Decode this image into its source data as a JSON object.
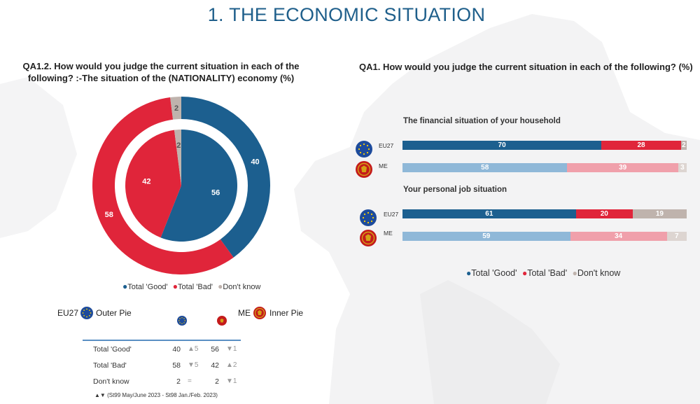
{
  "page_title": "1. THE ECONOMIC SITUATION",
  "colors": {
    "good": "#1c5f8f",
    "bad": "#e0253a",
    "dk": "#bfb3ad",
    "good_light": "#8fb8d8",
    "bad_light": "#f0a0ab",
    "dk_light": "#ddd5d1"
  },
  "left": {
    "question": "QA1.2. How would you judge the current situation in each of the following? :-The situation of the (NATIONALITY) economy (%)",
    "legend": [
      "Total 'Good'",
      "Total 'Bad'",
      "Don't know"
    ],
    "outer_key": {
      "name": "EU27",
      "label": "Outer Pie"
    },
    "inner_key": {
      "name": "ME",
      "label": "Inner Pie"
    },
    "table": [
      {
        "label": "Total 'Good'",
        "eu": "40",
        "eu_trend": "▲5",
        "me": "56",
        "me_trend": "▼1"
      },
      {
        "label": "Total 'Bad'",
        "eu": "58",
        "eu_trend": "▼5",
        "me": "42",
        "me_trend": "▲2"
      },
      {
        "label": "Don't know",
        "eu": "2",
        "eu_trend": "=",
        "me": "2",
        "me_trend": "▼1"
      }
    ],
    "note_symbols": "▲▼",
    "note": "(St99 May/June 2023 - St98 Jan./Feb. 2023)"
  },
  "right": {
    "question": "QA1. How would you judge the current situation in each of the following? (%)",
    "legend": [
      "Total 'Good'",
      "Total 'Bad'",
      "Don't know"
    ]
  },
  "chart_data": [
    {
      "type": "pie",
      "title": "QA1.2. How would you judge the current situation in each of the following? :-The situation of the (NATIONALITY) economy (%)",
      "categories": [
        "Total 'Good'",
        "Total 'Bad'",
        "Don't know"
      ],
      "series": [
        {
          "name": "EU27",
          "ring": "outer",
          "values": [
            40,
            58,
            2
          ]
        },
        {
          "name": "ME",
          "ring": "inner",
          "values": [
            56,
            42,
            2
          ]
        }
      ]
    },
    {
      "type": "bar",
      "orientation": "horizontal-stacked",
      "title": "QA1. How would you judge the current situation in each of the following? (%)",
      "categories": [
        "Total 'Good'",
        "Total 'Bad'",
        "Don't know"
      ],
      "groups": [
        {
          "label": "The financial situation of your household",
          "rows": [
            {
              "name": "EU27",
              "values": [
                70,
                28,
                2
              ]
            },
            {
              "name": "ME",
              "values": [
                58,
                39,
                3
              ]
            }
          ]
        },
        {
          "label": "Your personal job situation",
          "rows": [
            {
              "name": "EU27",
              "values": [
                61,
                20,
                19
              ]
            },
            {
              "name": "ME",
              "values": [
                59,
                34,
                7
              ]
            }
          ]
        }
      ]
    }
  ]
}
